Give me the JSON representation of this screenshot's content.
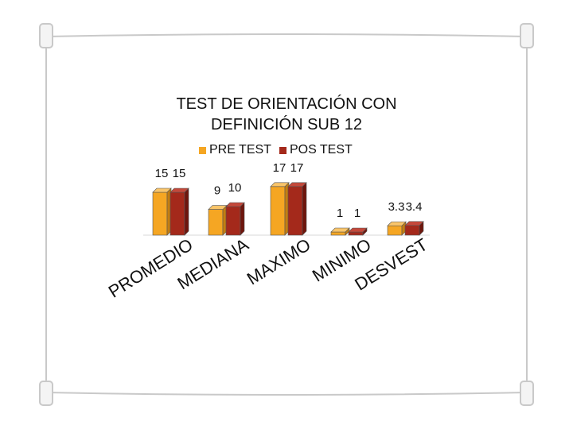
{
  "colors": {
    "pre_test": "#f5a623",
    "pos_test": "#a4291b",
    "frame": "#c9c9c9",
    "peg_fill": "#f4f4f4"
  },
  "chart_data": {
    "type": "bar",
    "title": "TEST DE ORIENTACIÓN CON DEFINICIÓN SUB 12",
    "title_lines": [
      "TEST DE ORIENTACIÓN CON",
      "DEFINICIÓN SUB 12"
    ],
    "categories": [
      "PROMEDIO",
      "MEDIANA",
      "MAXIMO",
      "MINIMO",
      "DESVEST"
    ],
    "series": [
      {
        "name": "PRE TEST",
        "values": [
          15,
          9,
          17,
          1,
          3.3
        ],
        "labels": [
          "15",
          "9",
          "17",
          "1",
          "3.3"
        ]
      },
      {
        "name": "POS TEST",
        "values": [
          15,
          10,
          17,
          1,
          3.4
        ],
        "labels": [
          "15",
          "10",
          "17",
          "1",
          "3.4"
        ]
      }
    ],
    "ylim": [
      0,
      17
    ],
    "grid": false,
    "legend_position": "top",
    "style": "3d-column"
  }
}
